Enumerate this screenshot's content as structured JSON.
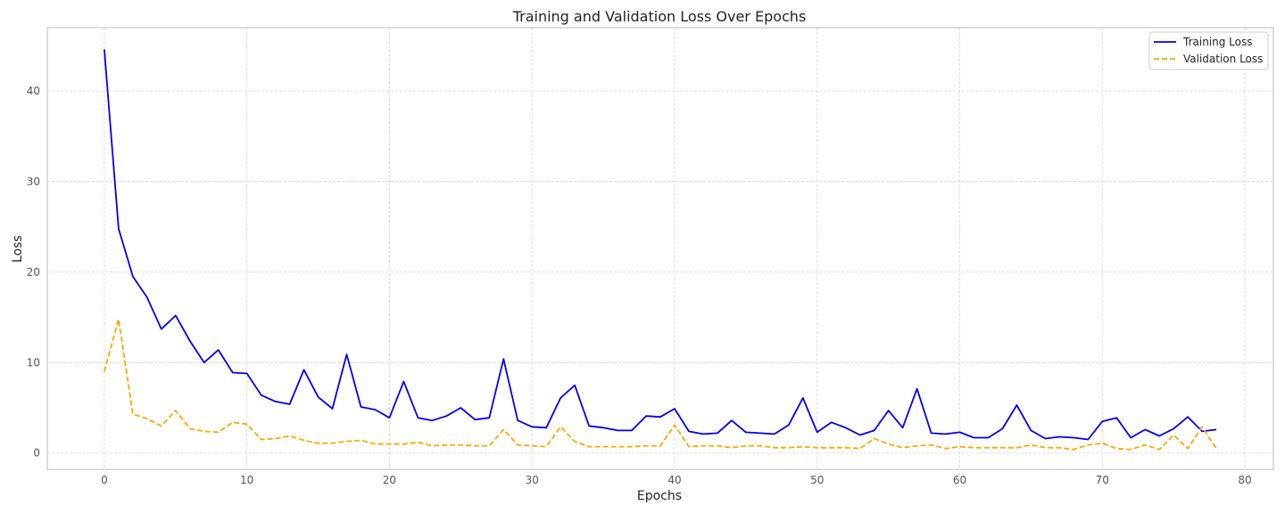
{
  "chart_data": {
    "type": "line",
    "title": "Training and Validation Loss Over Epochs",
    "xlabel": "Epochs",
    "ylabel": "Loss",
    "xlim": [
      -4,
      82
    ],
    "ylim": [
      -1.8,
      47
    ],
    "xticks": [
      0,
      10,
      20,
      30,
      40,
      50,
      60,
      70,
      80
    ],
    "yticks": [
      0,
      10,
      20,
      30,
      40
    ],
    "grid": true,
    "legend": "top-right",
    "series": [
      {
        "name": "Training Loss",
        "color": "#0000ee",
        "style": "solid",
        "values": [
          44.6,
          24.8,
          19.5,
          17.2,
          13.7,
          15.2,
          12.4,
          10.0,
          11.4,
          8.9,
          8.8,
          6.4,
          5.7,
          5.4,
          9.2,
          6.2,
          4.9,
          10.9,
          5.1,
          4.8,
          3.9,
          7.9,
          3.9,
          3.6,
          4.1,
          5.0,
          3.7,
          3.9,
          10.4,
          3.6,
          2.9,
          2.8,
          6.1,
          7.5,
          3.0,
          2.8,
          2.5,
          2.5,
          4.1,
          4.0,
          4.9,
          2.4,
          2.1,
          2.2,
          3.6,
          2.3,
          2.2,
          2.1,
          3.1,
          6.1,
          2.3,
          3.4,
          2.8,
          2.0,
          2.5,
          4.7,
          2.8,
          7.1,
          2.2,
          2.1,
          2.3,
          1.7,
          1.7,
          2.7,
          5.3,
          2.5,
          1.6,
          1.8,
          1.7,
          1.5,
          3.5,
          3.9,
          1.7,
          2.6,
          1.9,
          2.7,
          4.0,
          2.4,
          2.6
        ]
      },
      {
        "name": "Validation Loss",
        "color": "#ffa500",
        "style": "dashed",
        "values": [
          9.0,
          14.8,
          4.3,
          3.8,
          3.0,
          4.7,
          2.7,
          2.4,
          2.3,
          3.4,
          3.2,
          1.5,
          1.6,
          1.9,
          1.4,
          1.1,
          1.1,
          1.3,
          1.4,
          1.0,
          1.0,
          1.0,
          1.2,
          0.8,
          0.9,
          0.9,
          0.8,
          0.8,
          2.6,
          0.9,
          0.8,
          0.7,
          2.9,
          1.3,
          0.7,
          0.7,
          0.7,
          0.7,
          0.8,
          0.8,
          3.1,
          0.7,
          0.8,
          0.8,
          0.6,
          0.8,
          0.8,
          0.6,
          0.6,
          0.7,
          0.6,
          0.6,
          0.6,
          0.5,
          1.6,
          1.0,
          0.6,
          0.8,
          0.9,
          0.5,
          0.7,
          0.6,
          0.6,
          0.6,
          0.6,
          0.9,
          0.6,
          0.6,
          0.4,
          0.9,
          1.1,
          0.5,
          0.4,
          0.9,
          0.4,
          2.0,
          0.5,
          2.9,
          0.5
        ]
      }
    ]
  }
}
